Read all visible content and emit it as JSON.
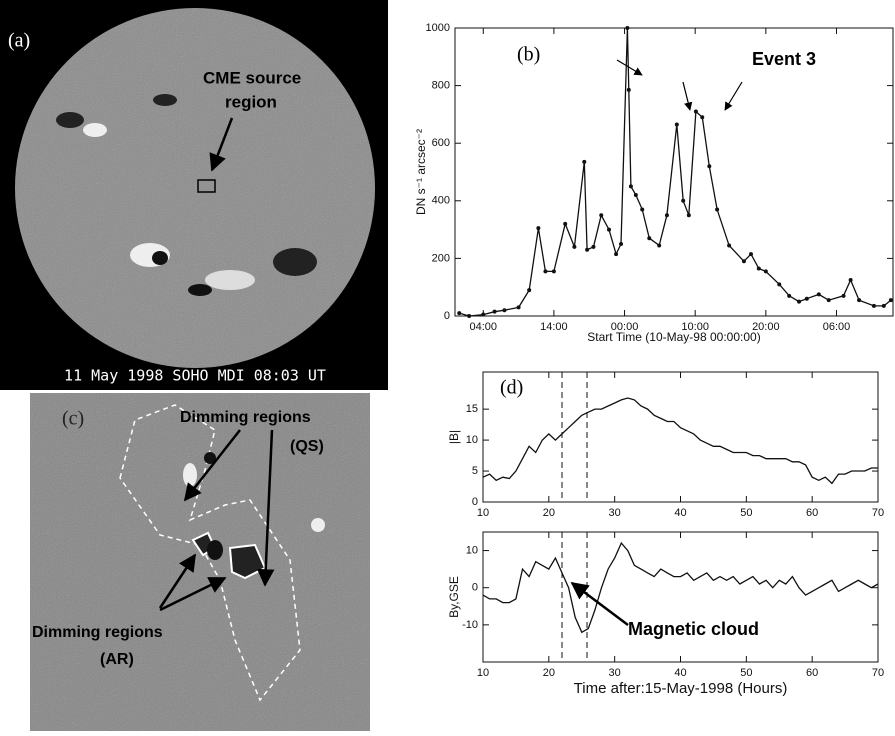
{
  "image_a": {
    "label": "(a)",
    "annotation": [
      "CME source",
      "region"
    ],
    "caption": "11 May 1998 SOHO MDI 08:03 UT"
  },
  "image_c": {
    "label": "(c)",
    "annotation_qs": [
      "Dimming regions",
      "(QS)"
    ],
    "annotation_ar": [
      "Dimming regions",
      "(AR)"
    ]
  },
  "chart_data": [
    {
      "type": "line",
      "label": "(b)",
      "annotation": "Event 3",
      "ylabel": "DN s⁻¹ arcsec⁻²",
      "xlabel": "Start Time (10-May-98 00:00:00)",
      "markers": true,
      "color": "#111111",
      "x": [
        0.6,
        2,
        4,
        5.6,
        7,
        9,
        10.5,
        11.8,
        12.8,
        14,
        15.6,
        16.9,
        18.3,
        18.7,
        19.6,
        20.7,
        21.8,
        22.8,
        23.5,
        24.4,
        24.6,
        24.9,
        25.6,
        26.5,
        27.5,
        28.9,
        30,
        31.4,
        32.3,
        33.1,
        34.1,
        35,
        36,
        37.1,
        38.8,
        40.9,
        41.9,
        43,
        44,
        45.9,
        47.3,
        48.7,
        49.8,
        51.5,
        52.9,
        55,
        56,
        57.2,
        59.3,
        60.7,
        61.7
      ],
      "values": [
        10,
        0,
        5,
        15,
        20,
        30,
        90,
        305,
        155,
        155,
        320,
        240,
        535,
        230,
        240,
        350,
        300,
        215,
        250,
        1000,
        785,
        450,
        420,
        370,
        270,
        245,
        350,
        665,
        400,
        350,
        710,
        690,
        520,
        370,
        245,
        190,
        215,
        165,
        155,
        110,
        70,
        50,
        60,
        75,
        55,
        70,
        125,
        55,
        35,
        35,
        55
      ],
      "xlim": [
        0,
        62
      ],
      "xticks": [
        {
          "value": 4,
          "label": "04:00"
        },
        {
          "value": 14,
          "label": "14:00"
        },
        {
          "value": 24,
          "label": "00:00"
        },
        {
          "value": 34,
          "label": "10:00"
        },
        {
          "value": 44,
          "label": "20:00"
        },
        {
          "value": 54,
          "label": "06:00"
        }
      ],
      "ylim": [
        0,
        1000
      ],
      "yticks": [
        0,
        200,
        400,
        600,
        800,
        1000
      ]
    },
    {
      "type": "line",
      "label": "(d)",
      "ylabel": "|B|",
      "color": "#111111",
      "vlines": [
        22,
        25.8
      ],
      "x": [
        10,
        11,
        12,
        13,
        14,
        15,
        16,
        17,
        18,
        19,
        20,
        21,
        22,
        23,
        24,
        25,
        26,
        27,
        28,
        29,
        30,
        31,
        32,
        33,
        34,
        35,
        36,
        37,
        38,
        39,
        40,
        41,
        42,
        43,
        44,
        45,
        46,
        47,
        48,
        49,
        50,
        51,
        52,
        53,
        54,
        55,
        56,
        57,
        58,
        59,
        60,
        61,
        62,
        63,
        64,
        65,
        66,
        67,
        68,
        69,
        70
      ],
      "values": [
        4,
        4.5,
        3.5,
        4,
        3.8,
        5,
        7,
        9,
        8,
        10,
        11,
        10,
        11,
        12,
        13,
        14,
        14.5,
        15,
        15,
        15.5,
        16,
        16.5,
        16.8,
        16.5,
        15.5,
        15,
        14,
        13.5,
        13,
        13,
        12,
        11.5,
        11,
        10,
        9.5,
        9,
        9,
        8.5,
        8,
        8,
        8,
        7.5,
        7.5,
        7,
        7,
        7,
        7,
        6.5,
        6.5,
        6,
        4,
        3.5,
        4,
        3,
        4.5,
        4.5,
        5,
        5,
        5,
        5.5,
        5.5
      ],
      "xlim": [
        10,
        70
      ],
      "xticks": [
        10,
        20,
        30,
        40,
        50,
        60,
        70
      ],
      "ylim": [
        0,
        21
      ],
      "yticks": [
        0,
        5,
        10,
        15
      ]
    },
    {
      "type": "line",
      "ylabel": "By,GSE",
      "xlabel": "Time after:15-May-1998 (Hours)",
      "annotation": "Magnetic cloud",
      "color": "#111111",
      "vlines": [
        22,
        25.8
      ],
      "x": [
        10,
        11,
        12,
        13,
        14,
        15,
        16,
        17,
        18,
        19,
        20,
        21,
        22,
        23,
        24,
        25,
        26,
        27,
        28,
        29,
        30,
        31,
        32,
        33,
        34,
        35,
        36,
        37,
        38,
        39,
        40,
        41,
        42,
        43,
        44,
        45,
        46,
        47,
        48,
        49,
        50,
        51,
        52,
        53,
        54,
        55,
        56,
        57,
        58,
        59,
        60,
        61,
        62,
        63,
        64,
        65,
        66,
        67,
        68,
        69,
        70
      ],
      "values": [
        -2,
        -3,
        -3,
        -4,
        -4,
        -3,
        5,
        3,
        7,
        6,
        5,
        8,
        4,
        0,
        -8,
        -12,
        -11,
        -6,
        0,
        5,
        8,
        12,
        10,
        6,
        5,
        4,
        3,
        5,
        4,
        3,
        3,
        4,
        2,
        3,
        4,
        2,
        3,
        2,
        3,
        1,
        2,
        3,
        1,
        2,
        0,
        2,
        1,
        3,
        0,
        -2,
        -1,
        0,
        1,
        2,
        -1,
        0,
        1,
        2,
        1,
        0,
        1
      ],
      "xlim": [
        10,
        70
      ],
      "xticks": [
        10,
        20,
        30,
        40,
        50,
        60,
        70
      ],
      "ylim": [
        -20,
        15
      ],
      "yticks": [
        -10,
        0,
        10
      ]
    }
  ]
}
